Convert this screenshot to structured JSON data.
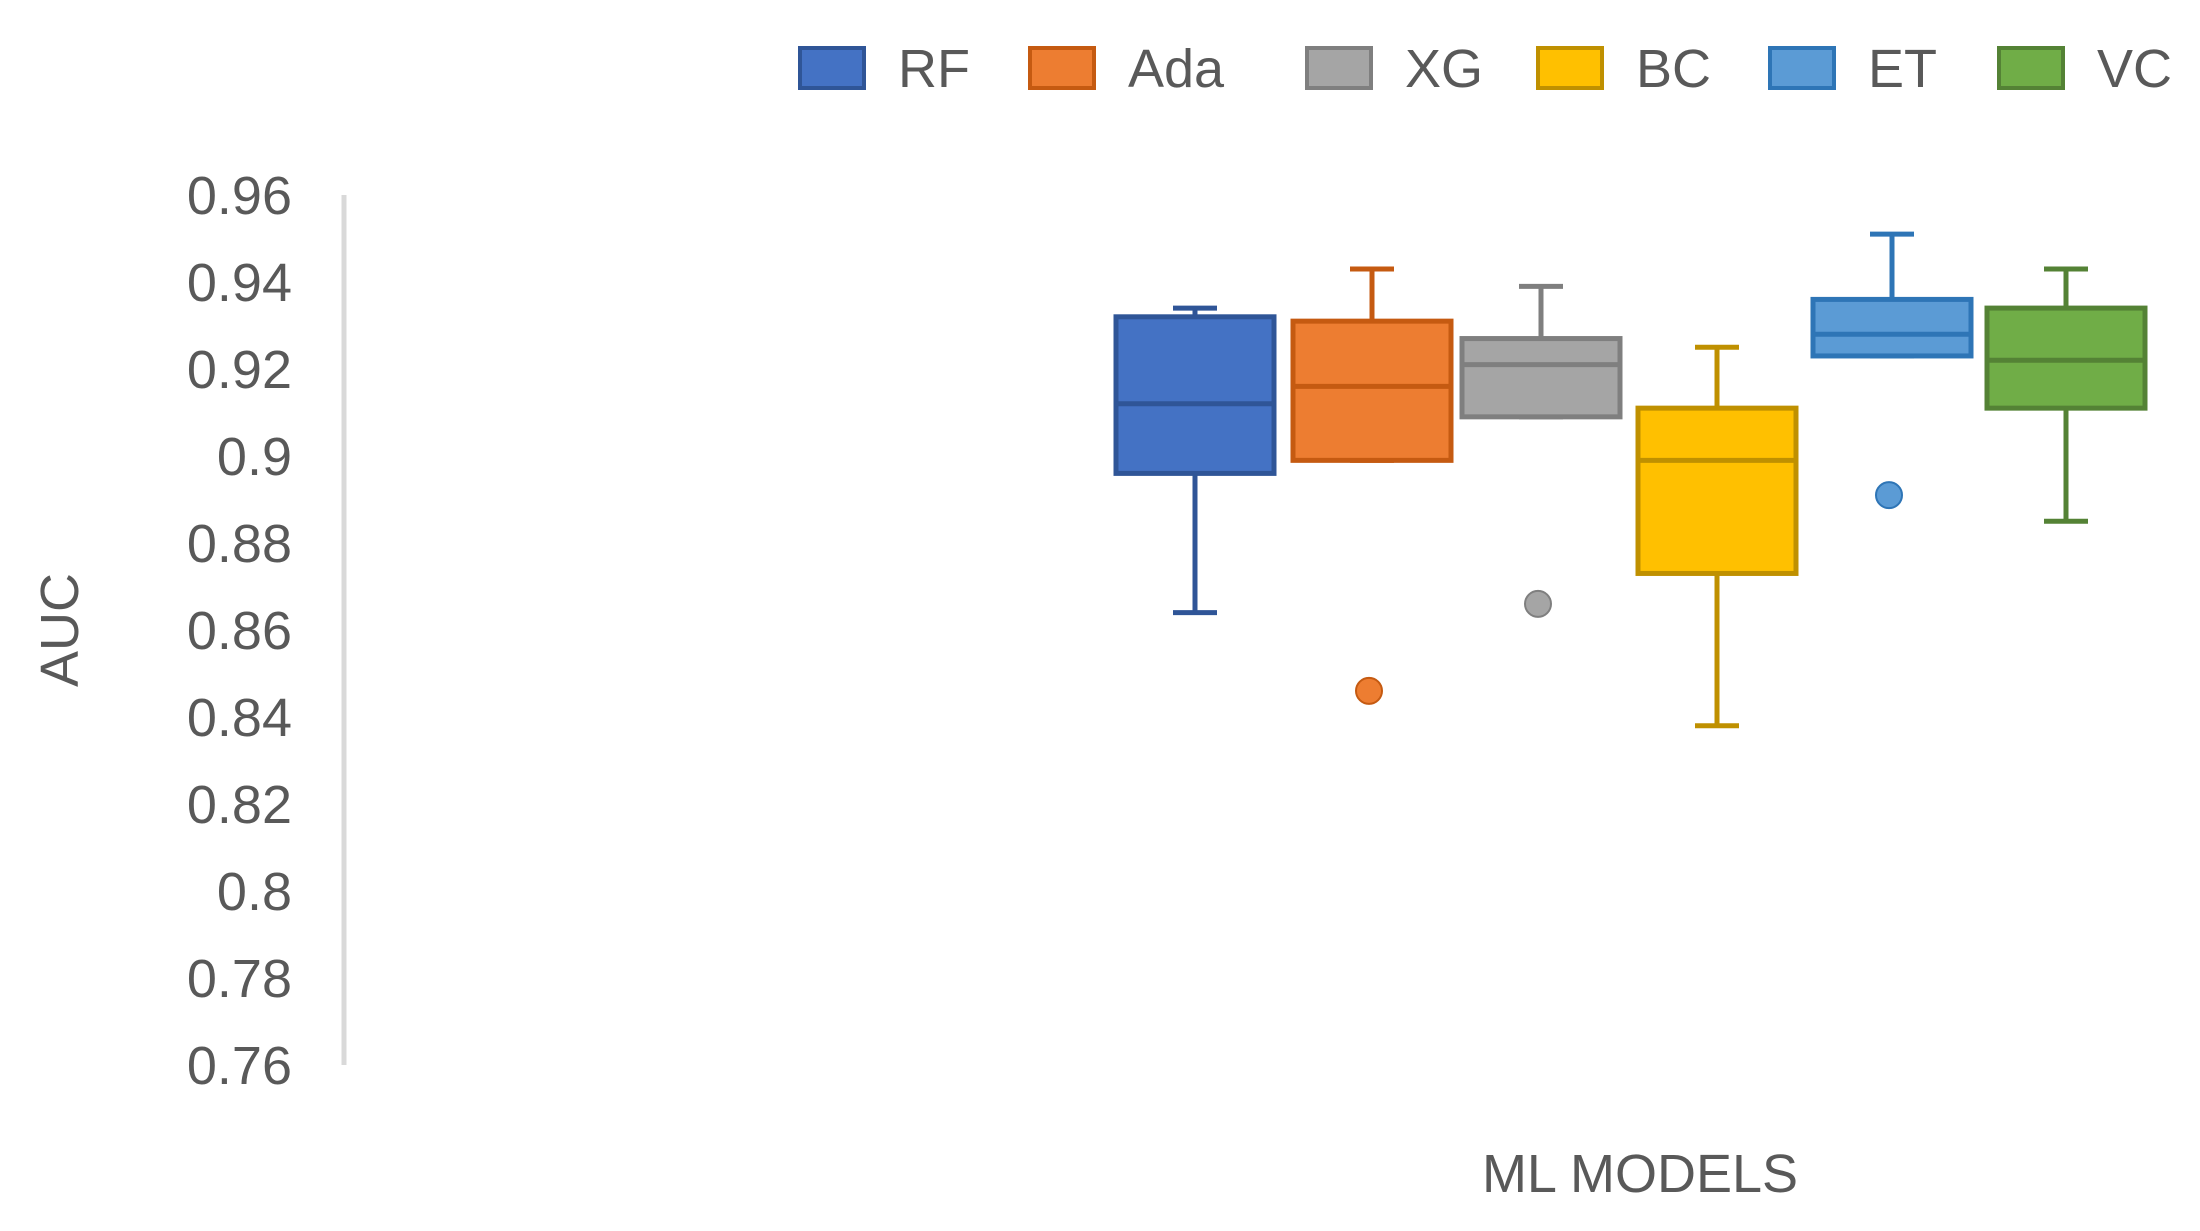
{
  "chart_data": {
    "type": "box",
    "title": "",
    "xlabel": "ML MODELS",
    "ylabel": "AUC",
    "ylim": [
      0.76,
      0.96
    ],
    "ytick_step": 0.02,
    "yticks": [
      "0.76",
      "0.78",
      "0.8",
      "0.82",
      "0.84",
      "0.86",
      "0.88",
      "0.9",
      "0.92",
      "0.94",
      "0.96"
    ],
    "grid": false,
    "legend_position": "top",
    "series": [
      {
        "name": "RF",
        "color": "#4472C4",
        "stroke": "#2F5597",
        "whisker_low": 0.864,
        "q1": 0.896,
        "median": 0.912,
        "q3": 0.932,
        "whisker_high": 0.934,
        "outliers": []
      },
      {
        "name": "Ada",
        "color": "#ED7D31",
        "stroke": "#C55A11",
        "whisker_low": 0.899,
        "q1": 0.899,
        "median": 0.916,
        "q3": 0.931,
        "whisker_high": 0.943,
        "outliers": [
          0.846
        ]
      },
      {
        "name": "XG",
        "color": "#A5A5A5",
        "stroke": "#7F7F7F",
        "whisker_low": 0.909,
        "q1": 0.909,
        "median": 0.921,
        "q3": 0.927,
        "whisker_high": 0.939,
        "outliers": [
          0.866
        ]
      },
      {
        "name": "BC",
        "color": "#FFC000",
        "stroke": "#BF9000",
        "whisker_low": 0.838,
        "q1": 0.873,
        "median": 0.899,
        "q3": 0.911,
        "whisker_high": 0.925,
        "outliers": []
      },
      {
        "name": "ET",
        "color": "#5B9BD5",
        "stroke": "#2E75B6",
        "whisker_low": 0.923,
        "q1": 0.923,
        "median": 0.928,
        "q3": 0.936,
        "whisker_high": 0.951,
        "outliers": [
          0.891
        ]
      },
      {
        "name": "VC",
        "color": "#70AD47",
        "stroke": "#548235",
        "whisker_low": 0.885,
        "q1": 0.911,
        "median": 0.922,
        "q3": 0.934,
        "whisker_high": 0.943,
        "outliers": []
      }
    ]
  }
}
